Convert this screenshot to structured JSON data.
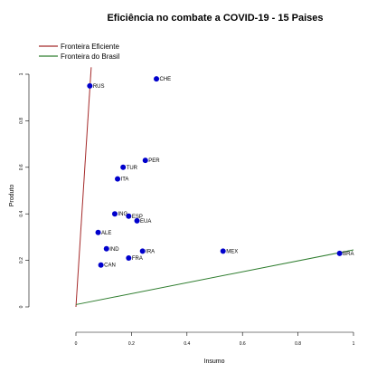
{
  "chart_data": {
    "type": "scatter",
    "title": "Eficiência no combate a COVID-19 - 15 Paises",
    "xlabel": "Insumo",
    "ylabel": "Produto",
    "xlim": [
      0,
      1
    ],
    "ylim": [
      0,
      1
    ],
    "x_ticks": [
      "0",
      "0.2",
      "0.4",
      "0.6",
      "0.8",
      "1"
    ],
    "y_ticks": [
      "0",
      "0.2",
      "0.4",
      "0.6",
      "0.8",
      "1"
    ],
    "grid": false,
    "legend_position": "top-left",
    "point_color": "#0000cc",
    "points": [
      {
        "label": "RUS",
        "x": 0.05,
        "y": 0.95
      },
      {
        "label": "CHE",
        "x": 0.29,
        "y": 0.98
      },
      {
        "label": "PER",
        "x": 0.25,
        "y": 0.63
      },
      {
        "label": "TUR",
        "x": 0.17,
        "y": 0.6
      },
      {
        "label": "ITA",
        "x": 0.15,
        "y": 0.55
      },
      {
        "label": "ING",
        "x": 0.14,
        "y": 0.4
      },
      {
        "label": "ESP",
        "x": 0.19,
        "y": 0.39
      },
      {
        "label": "EUA",
        "x": 0.22,
        "y": 0.37
      },
      {
        "label": "ALE",
        "x": 0.08,
        "y": 0.32
      },
      {
        "label": "IND",
        "x": 0.11,
        "y": 0.25
      },
      {
        "label": "IRA",
        "x": 0.24,
        "y": 0.24
      },
      {
        "label": "MEX",
        "x": 0.53,
        "y": 0.24
      },
      {
        "label": "BRA",
        "x": 0.95,
        "y": 0.23
      },
      {
        "label": "FRA",
        "x": 0.19,
        "y": 0.21
      },
      {
        "label": "CAN",
        "x": 0.09,
        "y": 0.18
      }
    ],
    "lines": [
      {
        "name": "Fronteira Eficiente",
        "color": "#a52a2a",
        "x": [
          0,
          0.055
        ],
        "y": [
          0,
          1.03
        ]
      },
      {
        "name": "Fronteira do Brasil",
        "color": "#2e7d2e",
        "x": [
          0,
          1.0
        ],
        "y": [
          0.01,
          0.245
        ]
      }
    ]
  }
}
